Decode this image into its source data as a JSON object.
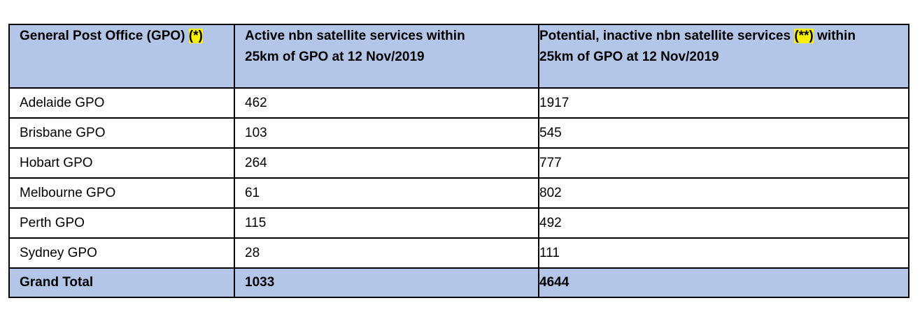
{
  "table": {
    "header": {
      "col1": {
        "text": "General Post Office (GPO) ",
        "note": "(*)"
      },
      "col2": {
        "line1": "Active nbn satellite services within",
        "line2": "25km of GPO at 12 Nov/2019"
      },
      "col3": {
        "text_before": "Potential, inactive nbn satellite services ",
        "note": "(**)",
        "text_after": " within",
        "line2": "25km of GPO at 12 Nov/2019"
      }
    },
    "rows": [
      {
        "gpo": "Adelaide GPO",
        "active": "462",
        "potential": "1917"
      },
      {
        "gpo": "Brisbane GPO",
        "active": "103",
        "potential": "545"
      },
      {
        "gpo": "Hobart GPO",
        "active": "264",
        "potential": "777"
      },
      {
        "gpo": "Melbourne GPO",
        "active": "61",
        "potential": "802"
      },
      {
        "gpo": "Perth GPO",
        "active": "115",
        "potential": "492"
      },
      {
        "gpo": "Sydney GPO",
        "active": "28",
        "potential": "111"
      }
    ],
    "total": {
      "label": "Grand Total",
      "active": "1033",
      "potential": "4644"
    }
  },
  "colors": {
    "header_fill": "#b4c6e7",
    "highlight": "#fff200",
    "border": "#000000"
  }
}
